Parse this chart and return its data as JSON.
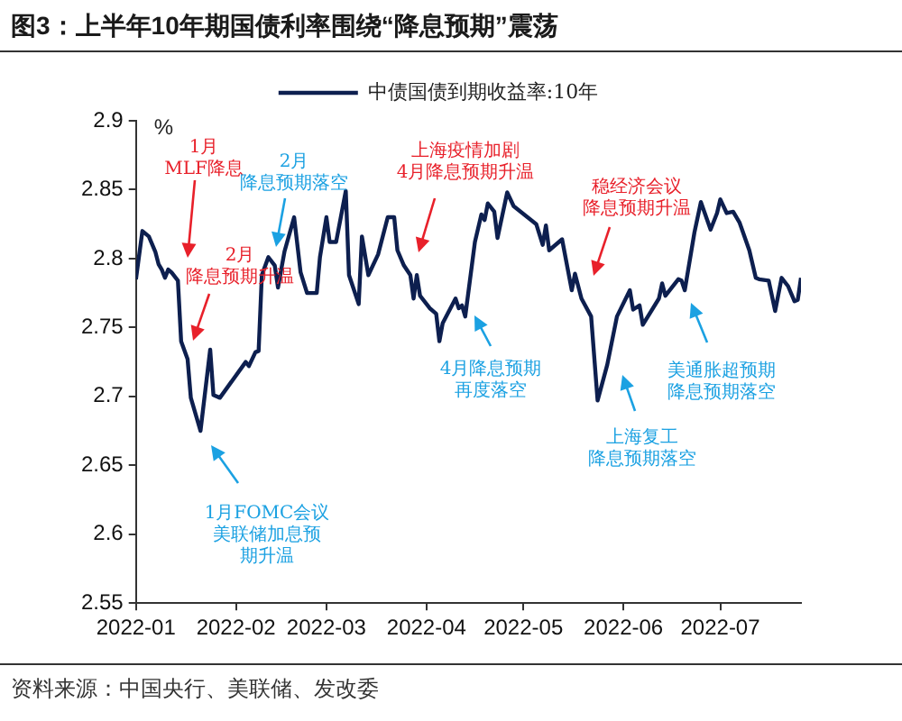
{
  "chart_data": {
    "type": "line",
    "title": "图3：上半年10年期国债利率围绕“降息预期”震荡",
    "ylabel": "%",
    "legend": "top",
    "grid": false,
    "marker": "none",
    "line_style": "solid",
    "xlim": [
      "2022-01-01",
      "2022-07-26"
    ],
    "xticks": [
      "2022-01",
      "2022-02",
      "2022-03",
      "2022-04",
      "2022-05",
      "2022-06",
      "2022-07"
    ],
    "ylim": [
      2.55,
      2.9
    ],
    "yticks": [
      2.55,
      2.6,
      2.65,
      2.7,
      2.75,
      2.8,
      2.85,
      2.9
    ],
    "x": [
      "2022-01-01",
      "2022-01-03",
      "2022-01-05",
      "2022-01-07",
      "2022-01-08",
      "2022-01-09",
      "2022-01-10",
      "2022-01-11",
      "2022-01-12",
      "2022-01-14",
      "2022-01-15",
      "2022-01-17",
      "2022-01-18",
      "2022-01-21",
      "2022-01-24",
      "2022-01-25",
      "2022-01-27",
      "2022-02-04",
      "2022-02-05",
      "2022-02-07",
      "2022-02-08",
      "2022-02-09",
      "2022-02-11",
      "2022-02-13",
      "2022-02-14",
      "2022-02-16",
      "2022-02-19",
      "2022-02-21",
      "2022-02-23",
      "2022-02-26",
      "2022-02-27",
      "2022-03-01",
      "2022-03-02",
      "2022-03-04",
      "2022-03-07",
      "2022-03-08",
      "2022-03-11",
      "2022-03-12",
      "2022-03-14",
      "2022-03-17",
      "2022-03-20",
      "2022-03-22",
      "2022-03-23",
      "2022-03-25",
      "2022-03-27",
      "2022-03-28",
      "2022-03-29",
      "2022-03-30",
      "2022-04-02",
      "2022-04-04",
      "2022-04-05",
      "2022-04-06",
      "2022-04-10",
      "2022-04-11",
      "2022-04-12",
      "2022-04-13",
      "2022-04-16",
      "2022-04-18",
      "2022-04-19",
      "2022-04-20",
      "2022-04-22",
      "2022-04-23",
      "2022-04-26",
      "2022-04-28",
      "2022-05-05",
      "2022-05-07",
      "2022-05-08",
      "2022-05-09",
      "2022-05-13",
      "2022-05-16",
      "2022-05-17",
      "2022-05-19",
      "2022-05-22",
      "2022-05-24",
      "2022-05-27",
      "2022-05-30",
      "2022-06-03",
      "2022-06-04",
      "2022-06-06",
      "2022-06-07",
      "2022-06-12",
      "2022-06-13",
      "2022-06-14",
      "2022-06-18",
      "2022-06-19",
      "2022-06-20",
      "2022-06-23",
      "2022-06-25",
      "2022-06-28",
      "2022-06-30",
      "2022-07-01",
      "2022-07-03",
      "2022-07-05",
      "2022-07-07",
      "2022-07-10",
      "2022-07-12",
      "2022-07-13",
      "2022-07-16",
      "2022-07-18",
      "2022-07-20",
      "2022-07-22",
      "2022-07-24",
      "2022-07-25",
      "2022-07-26"
    ],
    "series": [
      {
        "name": "中债国债到期收益率:10年",
        "color": "#0d1f4f",
        "values": [
          2.785,
          2.82,
          2.816,
          2.805,
          2.796,
          2.792,
          2.786,
          2.792,
          2.79,
          2.784,
          2.74,
          2.727,
          2.699,
          2.675,
          2.734,
          2.701,
          2.699,
          2.725,
          2.722,
          2.732,
          2.733,
          2.788,
          2.801,
          2.795,
          2.779,
          2.805,
          2.83,
          2.79,
          2.775,
          2.775,
          2.801,
          2.83,
          2.812,
          2.812,
          2.849,
          2.788,
          2.767,
          2.816,
          2.788,
          2.803,
          2.83,
          2.83,
          2.806,
          2.795,
          2.788,
          2.771,
          2.788,
          2.773,
          2.764,
          2.76,
          2.74,
          2.753,
          2.771,
          2.764,
          2.766,
          2.758,
          2.812,
          2.832,
          2.828,
          2.84,
          2.834,
          2.815,
          2.848,
          2.838,
          2.825,
          2.81,
          2.824,
          2.806,
          2.814,
          2.777,
          2.789,
          2.771,
          2.758,
          2.697,
          2.723,
          2.758,
          2.777,
          2.763,
          2.766,
          2.752,
          2.771,
          2.782,
          2.773,
          2.785,
          2.784,
          2.777,
          2.819,
          2.841,
          2.821,
          2.833,
          2.843,
          2.833,
          2.834,
          2.826,
          2.806,
          2.786,
          2.785,
          2.784,
          2.762,
          2.786,
          2.78,
          2.769,
          2.77,
          2.786
        ]
      }
    ],
    "annotations": [
      "1月MLF降息",
      "2月降息预期升温",
      "2月降息预期落空",
      "1月FOMC会议美联储加息预期升温",
      "上海疫情加剧4月降息预期升温",
      "4月降息预期再度落空",
      "稳经济会议降息预期升温",
      "上海复工降息预期落空",
      "美通胀超预期降息预期落空",
      "资料来源：中国央行、美联储、发改委"
    ]
  }
}
